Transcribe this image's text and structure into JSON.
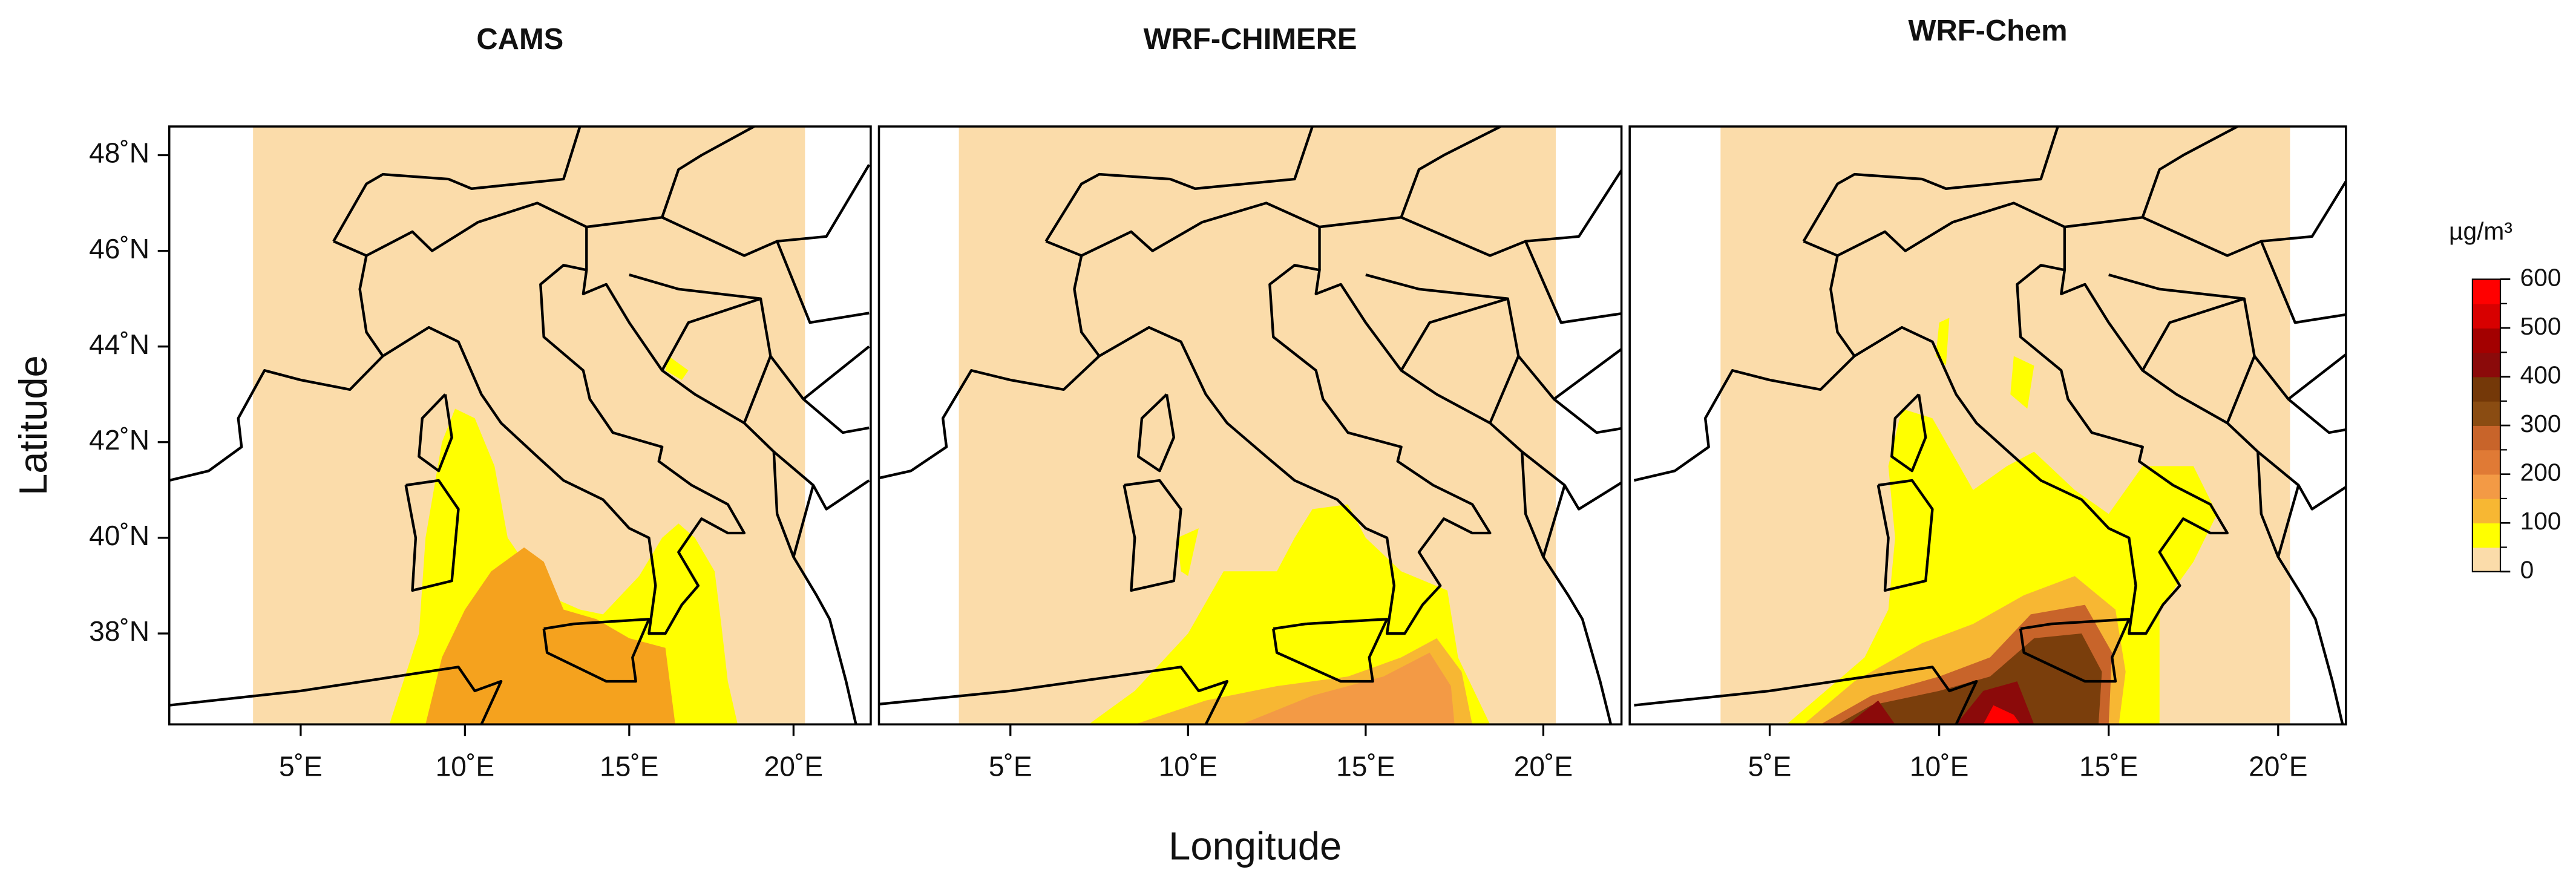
{
  "panels": [
    {
      "title": "CAMS",
      "xlim": [
        1.0,
        22.35
      ],
      "ylim": [
        36.1,
        48.6
      ],
      "xticks": [
        {
          "value": 5,
          "label": "5˚E"
        },
        {
          "value": 10,
          "label": "10˚E"
        },
        {
          "value": 15,
          "label": "15˚E"
        },
        {
          "value": 20,
          "label": "20˚E"
        }
      ],
      "yticks": [
        {
          "value": 38,
          "label": "38˚N"
        },
        {
          "value": 40,
          "label": "40˚N"
        },
        {
          "value": 42,
          "label": "42˚N"
        },
        {
          "value": 44,
          "label": "44˚N"
        },
        {
          "value": 46,
          "label": "46˚N"
        },
        {
          "value": 48,
          "label": "48˚N"
        }
      ]
    },
    {
      "title": "WRF-CHIMERE",
      "xlim": [
        1.3,
        22.2
      ],
      "ylim": [
        36.1,
        48.6
      ],
      "xticks": [
        {
          "value": 5,
          "label": "5˚E"
        },
        {
          "value": 10,
          "label": "10˚E"
        },
        {
          "value": 15,
          "label": "15˚E"
        },
        {
          "value": 20,
          "label": "20˚E"
        }
      ]
    },
    {
      "title": "WRF-Chem",
      "xlim": [
        0.87,
        22.0
      ],
      "ylim": [
        36.1,
        48.6
      ],
      "xticks": [
        {
          "value": 5,
          "label": "5˚E"
        },
        {
          "value": 10,
          "label": "10˚E"
        },
        {
          "value": 15,
          "label": "15˚E"
        },
        {
          "value": 20,
          "label": "20˚E"
        }
      ]
    }
  ],
  "x_label": "Longitude",
  "y_label": "Latitude",
  "colorbar": {
    "label": "µg/m³",
    "lim": [
      0,
      600
    ],
    "ticks": [
      0,
      100,
      200,
      300,
      400,
      500,
      600
    ],
    "colors": [
      "#fbdcaa",
      "#ffff00",
      "#f7b733",
      "#f39a45",
      "#e07a35",
      "#c8642a",
      "#8a4c12",
      "#743808",
      "#8b0a0a",
      "#a30000",
      "#d80000",
      "#ff0000"
    ]
  }
}
